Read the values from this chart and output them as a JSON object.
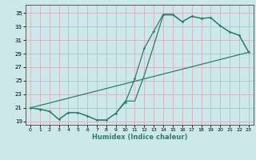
{
  "xlabel": "Humidex (Indice chaleur)",
  "bg_color": "#cce8ea",
  "grid_color": "#d4b8c0",
  "line_color": "#2e7d6e",
  "xlim": [
    -0.5,
    23.5
  ],
  "ylim": [
    18.5,
    36.2
  ],
  "xticks": [
    0,
    1,
    2,
    3,
    4,
    5,
    6,
    7,
    8,
    9,
    10,
    11,
    12,
    13,
    14,
    15,
    16,
    17,
    18,
    19,
    20,
    21,
    22,
    23
  ],
  "yticks": [
    19,
    21,
    23,
    25,
    27,
    29,
    31,
    33,
    35
  ],
  "line1_x": [
    0,
    1,
    2,
    3,
    4,
    5,
    6,
    7,
    8,
    9,
    10,
    11,
    12,
    13,
    14,
    15,
    16,
    17,
    18,
    19,
    20,
    21,
    22,
    23
  ],
  "line1_y": [
    21.0,
    20.8,
    20.5,
    19.3,
    20.3,
    20.3,
    19.8,
    19.2,
    19.2,
    20.2,
    21.8,
    25.3,
    29.8,
    32.3,
    34.8,
    34.8,
    33.7,
    34.5,
    34.2,
    34.3,
    33.1,
    32.2,
    31.7,
    29.2
  ],
  "line2_x": [
    0,
    1,
    2,
    3,
    4,
    5,
    6,
    7,
    8,
    9,
    10,
    11,
    12,
    13,
    14,
    15,
    16,
    17,
    18,
    19,
    20,
    21,
    22,
    23
  ],
  "line2_y": [
    21.0,
    20.8,
    20.5,
    19.3,
    20.3,
    20.3,
    19.8,
    19.2,
    19.2,
    20.2,
    22.0,
    22.0,
    25.8,
    30.2,
    34.7,
    34.7,
    33.7,
    34.5,
    34.2,
    34.3,
    33.1,
    32.2,
    31.7,
    29.2
  ],
  "line3_x": [
    0,
    23
  ],
  "line3_y": [
    21.0,
    29.2
  ]
}
